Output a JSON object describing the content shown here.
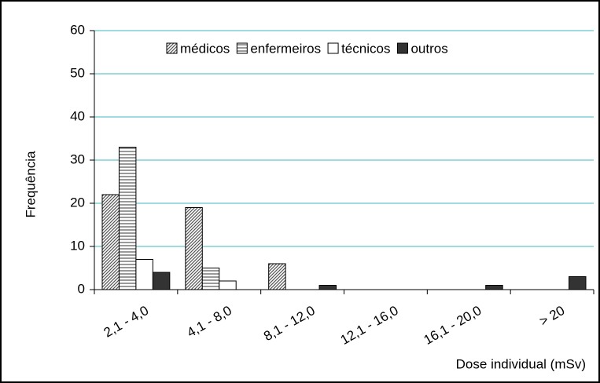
{
  "chart_data": {
    "type": "bar",
    "categories": [
      "2,1 - 4,0",
      "4,1 - 8,0",
      "8,1 - 12,0",
      "12,1 - 16,0",
      "16,1 - 20,0",
      "> 20"
    ],
    "series": [
      {
        "name": "médicos",
        "color": "#555555",
        "pattern": "diagonal",
        "values": [
          22,
          19,
          6,
          0,
          0,
          0
        ]
      },
      {
        "name": "enfermeiros",
        "color": "#555555",
        "pattern": "horizontal",
        "values": [
          33,
          5,
          0,
          0,
          0,
          0
        ]
      },
      {
        "name": "técnicos",
        "color": "#ffffff",
        "pattern": "none",
        "values": [
          7,
          2,
          0,
          0,
          0,
          0
        ]
      },
      {
        "name": "outros",
        "color": "#333333",
        "pattern": "none",
        "values": [
          4,
          0,
          1,
          0,
          1,
          3
        ]
      }
    ],
    "x_label": "Dose individual (mSv)",
    "y_label": "Frequência",
    "ylim": [
      0,
      60
    ],
    "yticks": [
      0,
      10,
      20,
      30,
      40,
      50,
      60
    ],
    "grid": true,
    "grid_color": "#3fb8c0",
    "legend": "top"
  }
}
